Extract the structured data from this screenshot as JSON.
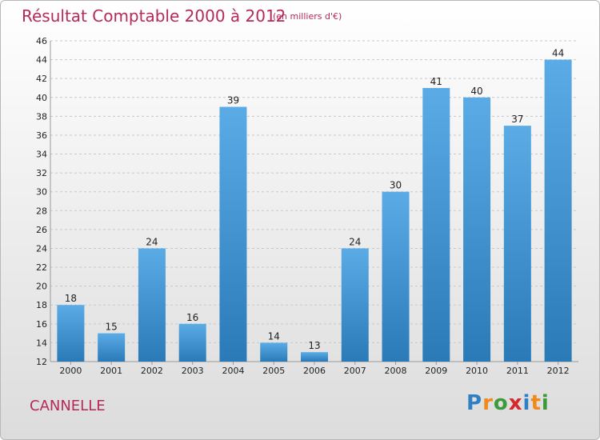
{
  "header": {
    "title": "Résultat Comptable 2000 à 2012",
    "subtitle": "(en milliers d'€)"
  },
  "commune": "CANNELLE",
  "logo": {
    "text": "Proxiti",
    "letters": [
      "P",
      "r",
      "o",
      "x",
      "i",
      "t",
      "i"
    ],
    "colors": [
      "#2f7fc5",
      "#f08a1c",
      "#3a9b3a",
      "#d6282c",
      "#2f7fc5",
      "#f08a1c",
      "#3a9b3a"
    ]
  },
  "colors": {
    "bar_top": "#5aabe6",
    "bar_bottom": "#2a7ab8",
    "grid": "#c8c8c8",
    "axis_text": "#222222",
    "title": "#b42a59"
  },
  "chart_data": {
    "type": "bar",
    "title": "Résultat Comptable 2000 à 2012",
    "subtitle": "(en milliers d'€)",
    "categories": [
      "2000",
      "2001",
      "2002",
      "2003",
      "2004",
      "2005",
      "2006",
      "2007",
      "2008",
      "2009",
      "2010",
      "2011",
      "2012"
    ],
    "values": [
      18,
      15,
      24,
      16,
      39,
      14,
      13,
      24,
      30,
      41,
      40,
      37,
      44
    ],
    "data_labels": [
      "18",
      "15",
      "24",
      "16",
      "39",
      "14",
      "13",
      "24",
      "30",
      "41",
      "40",
      "37",
      "44"
    ],
    "ylim": [
      12,
      46
    ],
    "yticks": [
      12,
      14,
      16,
      18,
      20,
      22,
      24,
      26,
      28,
      30,
      32,
      34,
      36,
      38,
      40,
      42,
      44,
      46
    ],
    "ytick_labels": [
      "12",
      "14",
      "16",
      "18",
      "20",
      "22",
      "24",
      "26",
      "28",
      "30",
      "32",
      "34",
      "36",
      "38",
      "40",
      "42",
      "44",
      "46"
    ],
    "grid": true,
    "legend": "none",
    "xlabel": "",
    "ylabel": ""
  }
}
